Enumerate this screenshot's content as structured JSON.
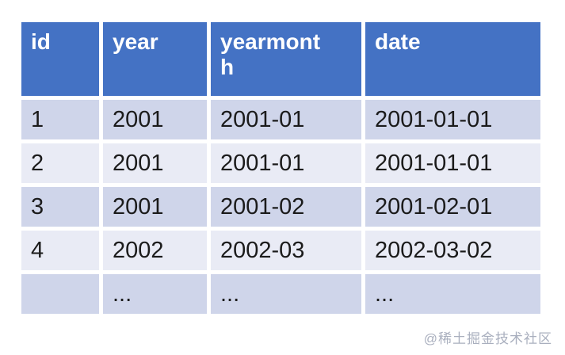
{
  "colors": {
    "header_bg": "#4472C4",
    "header_text": "#FFFFFF",
    "row_band_dark": "#CFD5EA",
    "row_band_light": "#E9EBF5",
    "body_text": "#1B1B1B",
    "watermark_text": "#A9AFBE"
  },
  "table": {
    "columns": [
      "id",
      "year",
      "yearmonth",
      "date"
    ],
    "rows": [
      [
        "1",
        "2001",
        "2001-01",
        "2001-01-01"
      ],
      [
        "2",
        "2001",
        "2001-01",
        "2001-01-01"
      ],
      [
        "3",
        "2001",
        "2001-02",
        "2001-02-01"
      ],
      [
        "4",
        "2002",
        "2002-03",
        "2002-03-02"
      ],
      [
        "",
        "...",
        "...",
        "..."
      ]
    ]
  },
  "watermark": {
    "text": "@稀土掘金技术社区"
  },
  "chart_data": {
    "type": "table",
    "title": "",
    "columns": [
      "id",
      "year",
      "yearmonth",
      "date"
    ],
    "rows": [
      [
        "1",
        "2001",
        "2001-01",
        "2001-01-01"
      ],
      [
        "2",
        "2001",
        "2001-01",
        "2001-01-01"
      ],
      [
        "3",
        "2001",
        "2001-02",
        "2001-02-01"
      ],
      [
        "4",
        "2002",
        "2002-03",
        "2002-03-02"
      ],
      [
        "",
        "...",
        "...",
        "..."
      ]
    ],
    "layout_hints": {
      "header_style": "solid blue band, white bold text, top-aligned",
      "body_style": "alternating banded rows (dark/light periwinkle), white 5px gaps as borders",
      "yearmonth_header_wraps": "renders as 'yearmont' + 'h' on second line"
    }
  }
}
